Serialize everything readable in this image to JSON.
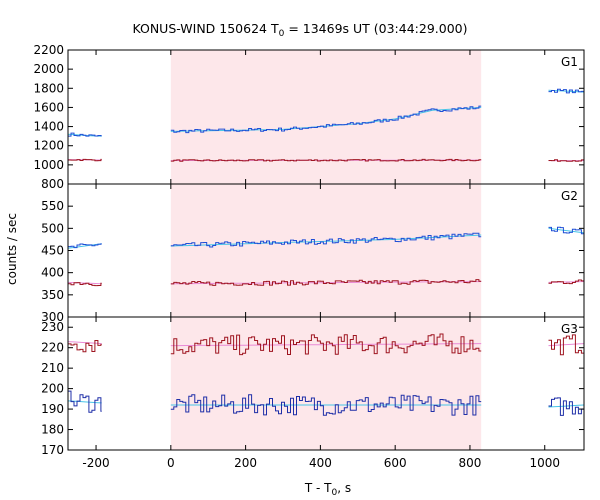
{
  "title": {
    "prefix": "KONUS-WIND 150624 T",
    "sub": "0",
    "suffix": " = 13469s UT (03:44:29.000)"
  },
  "x_axis": {
    "label_prefix": "T - T",
    "label_sub": "0",
    "label_suffix": ", s",
    "range": [
      -275,
      1105
    ],
    "ticks": [
      -200,
      0,
      200,
      400,
      600,
      800,
      1000
    ],
    "tick_labels": [
      "-200",
      "0",
      "200",
      "400",
      "600",
      "800",
      "1000"
    ]
  },
  "y_axis_label": "counts / sec",
  "colors": {
    "shade": "#fde7ea",
    "upper_series": "#1f4fd6",
    "upper_model": "#48c5e8",
    "lower_series": "#9e1520",
    "lower_model": "#e98ad6",
    "g3_upper_series": "#9e1520",
    "g3_upper_model": "#e98ad6",
    "g3_lower_series": "#1f2fa8",
    "g3_lower_model": "#48c5e8"
  },
  "chart_data": {
    "type": "line",
    "shaded_interval": [
      0,
      830
    ],
    "segments": [
      {
        "x": [
          -275,
          -185
        ]
      },
      {
        "x": [
          0,
          830
        ]
      },
      {
        "x": [
          1010,
          1105
        ]
      }
    ],
    "panels": [
      {
        "label": "G1",
        "ylim": [
          800,
          2200
        ],
        "yticks": [
          800,
          1000,
          1200,
          1400,
          1600,
          1800,
          2000,
          2200
        ],
        "ytick_labels": [
          "800",
          "1000",
          "1200",
          "1400",
          "1600",
          "1800",
          "2000",
          "2200"
        ],
        "series": [
          {
            "role": "upper",
            "levels": [
              [
                -275,
                1320
              ],
              [
                -200,
                1300
              ],
              [
                -185,
                1300
              ],
              [
                0,
                1350
              ],
              [
                300,
                1370
              ],
              [
                500,
                1430
              ],
              [
                600,
                1480
              ],
              [
                700,
                1570
              ],
              [
                830,
                1600
              ],
              [
                1010,
                1780
              ],
              [
                1105,
                1760
              ]
            ],
            "noise": 18,
            "step": 8
          },
          {
            "role": "lower",
            "levels": [
              [
                -275,
                1055
              ],
              [
                -185,
                1050
              ],
              [
                0,
                1045
              ],
              [
                830,
                1050
              ],
              [
                1010,
                1045
              ],
              [
                1105,
                1045
              ]
            ],
            "noise": 8,
            "step": 8
          }
        ]
      },
      {
        "label": "G2",
        "ylim": [
          300,
          600
        ],
        "yticks": [
          300,
          350,
          400,
          450,
          500,
          550
        ],
        "ytick_labels": [
          "300",
          "350",
          "400",
          "450",
          "500",
          "550"
        ],
        "series": [
          {
            "role": "upper",
            "levels": [
              [
                -275,
                455
              ],
              [
                -185,
                465
              ],
              [
                0,
                460
              ],
              [
                300,
                468
              ],
              [
                600,
                475
              ],
              [
                830,
                485
              ],
              [
                1010,
                500
              ],
              [
                1105,
                490
              ]
            ],
            "noise": 6,
            "step": 8
          },
          {
            "role": "lower",
            "levels": [
              [
                -275,
                378
              ],
              [
                -185,
                375
              ],
              [
                0,
                375
              ],
              [
                830,
                380
              ],
              [
                1010,
                378
              ],
              [
                1105,
                380
              ]
            ],
            "noise": 5,
            "step": 8
          }
        ]
      },
      {
        "label": "G3",
        "ylim": [
          170,
          235
        ],
        "yticks": [
          170,
          180,
          190,
          200,
          210,
          220,
          230
        ],
        "ytick_labels": [
          "170",
          "180",
          "190",
          "200",
          "210",
          "220",
          "230"
        ],
        "series": [
          {
            "role": "upper",
            "levels": [
              [
                -275,
                223
              ],
              [
                -185,
                222
              ],
              [
                0,
                221
              ],
              [
                830,
                222
              ],
              [
                1010,
                221
              ],
              [
                1105,
                222
              ]
            ],
            "noise": 5,
            "step": 8
          },
          {
            "role": "lower",
            "levels": [
              [
                -275,
                194
              ],
              [
                -185,
                193
              ],
              [
                0,
                192
              ],
              [
                830,
                192
              ],
              [
                1010,
                191
              ],
              [
                1105,
                192
              ]
            ],
            "noise": 5,
            "step": 8
          }
        ]
      }
    ]
  }
}
